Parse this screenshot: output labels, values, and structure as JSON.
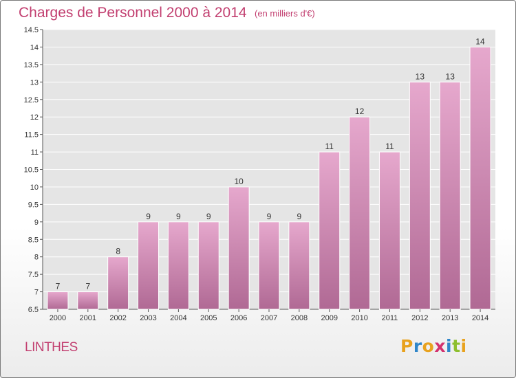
{
  "title": "Charges de Personnel 2000 à 2014",
  "subtitle": "(en milliers d'€)",
  "commune": "LINTHES",
  "logo": {
    "text": "Proxiti",
    "colors": [
      "#e8a21e",
      "#2f86c9",
      "#e8a21e",
      "#d3316e",
      "#2f86c9",
      "#8dbf2e",
      "#e8a21e"
    ]
  },
  "colors": {
    "accent": "#c23f70",
    "bar_top": "#e6a8cd",
    "bar_bottom": "#b06994",
    "background": "#e5e5e5"
  },
  "chart_data": {
    "type": "bar",
    "title": "Charges de Personnel 2000 à 2014",
    "subtitle": "(en milliers d'€)",
    "categories": [
      "2000",
      "2001",
      "2002",
      "2003",
      "2004",
      "2005",
      "2006",
      "2007",
      "2008",
      "2009",
      "2010",
      "2011",
      "2012",
      "2013",
      "2014"
    ],
    "values": [
      7,
      7,
      8,
      9,
      9,
      9,
      10,
      9,
      9,
      11,
      12,
      11,
      13,
      13,
      14
    ],
    "data_labels": [
      "7",
      "7",
      "8",
      "9",
      "9",
      "9",
      "10",
      "9",
      "9",
      "11",
      "12",
      "11",
      "13",
      "13",
      "14"
    ],
    "ylim": [
      6.5,
      14.5
    ],
    "yticks": [
      6.5,
      7,
      7.5,
      8,
      8.5,
      9,
      9.5,
      10,
      10.5,
      11,
      11.5,
      12,
      12.5,
      13,
      13.5,
      14,
      14.5
    ],
    "ytick_labels": [
      "6.5",
      "7",
      "7.5",
      "8",
      "8.5",
      "9",
      "9.5",
      "10",
      "10.5",
      "11",
      "11.5",
      "12",
      "12.5",
      "13",
      "13.5",
      "14",
      "14.5"
    ],
    "grid": true,
    "legend": "none"
  }
}
